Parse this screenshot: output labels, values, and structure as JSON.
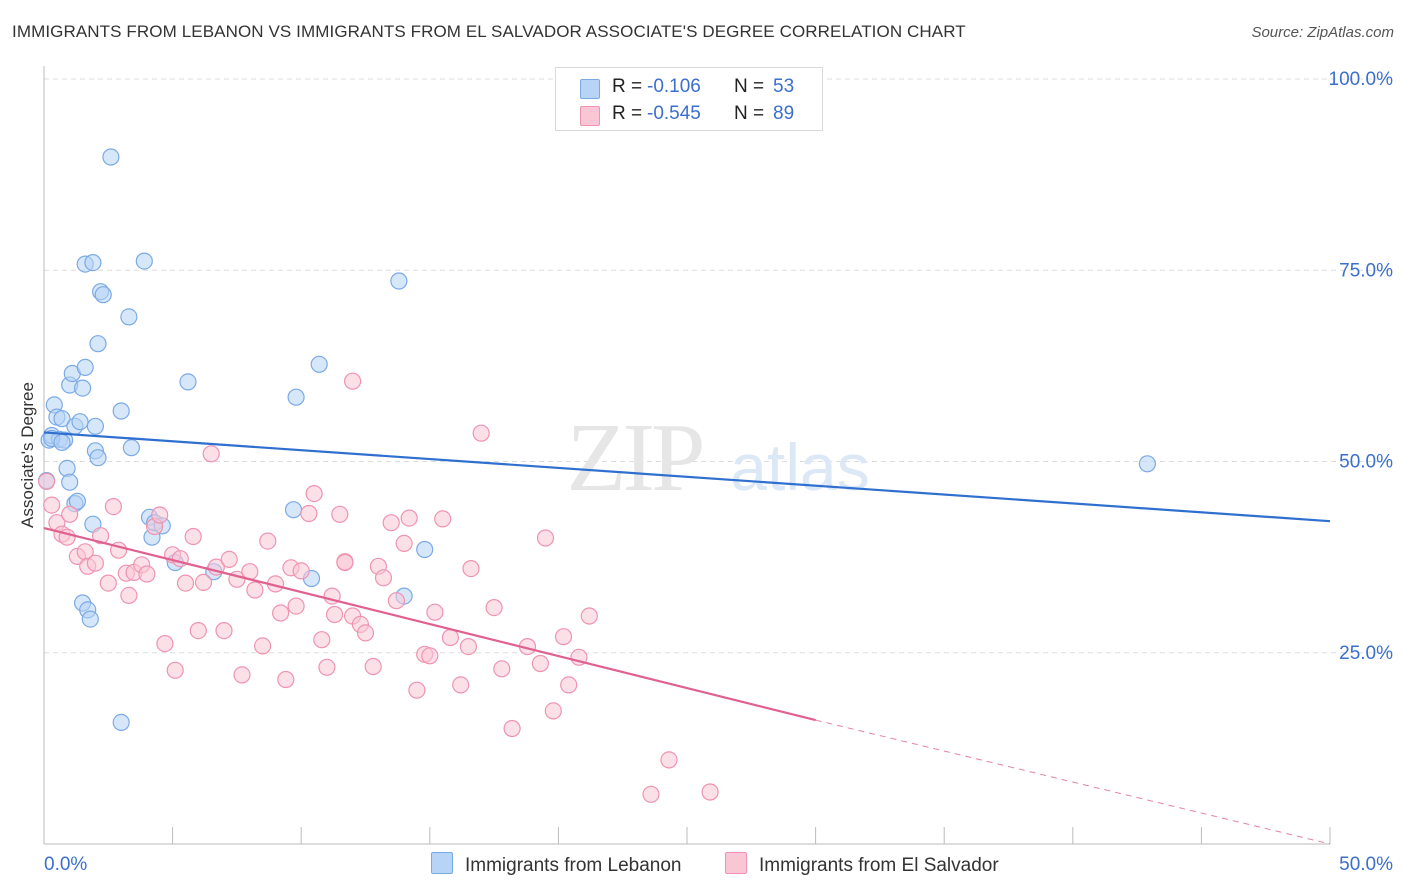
{
  "title": "IMMIGRANTS FROM LEBANON VS IMMIGRANTS FROM EL SALVADOR ASSOCIATE'S DEGREE CORRELATION CHART",
  "source": "Source: ZipAtlas.com",
  "watermark": {
    "zip": "ZIP",
    "atlas": "atlas"
  },
  "legend": [
    {
      "r_label": "R =",
      "r_value": "-0.106",
      "n_label": "N =",
      "n_value": "53"
    },
    {
      "r_label": "R =",
      "r_value": "-0.545",
      "n_label": "N =",
      "n_value": "89"
    }
  ],
  "colors": {
    "lebanon_fill": "#b7d3f5",
    "lebanon_stroke": "#7aaae6",
    "lebanon_line": "#2f6fcf",
    "salvador_fill": "#f9c6d6",
    "salvador_stroke": "#ef93b2",
    "salvador_line": "#e0618f",
    "axis_text": "#3a6fce",
    "grid": "#dddddd"
  },
  "chart_data": {
    "type": "scatter",
    "title": "IMMIGRANTS FROM LEBANON VS IMMIGRANTS FROM EL SALVADOR ASSOCIATE'S DEGREE CORRELATION CHART",
    "xlabel": "",
    "ylabel": "Associate's Degree",
    "xlim": [
      0,
      50
    ],
    "ylim": [
      0,
      102
    ],
    "x_tick_labels": {
      "left": "0.0%",
      "right": "50.0%"
    },
    "y_ticks": [
      {
        "value": 25,
        "label": "25.0%"
      },
      {
        "value": 50,
        "label": "50.0%"
      },
      {
        "value": 75,
        "label": "75.0%"
      },
      {
        "value": 100,
        "label": "100.0%"
      }
    ],
    "grid": true,
    "legend_position": "top-center",
    "series": [
      {
        "name": "Immigrants from Lebanon",
        "r": -0.106,
        "n": 53,
        "trend": {
          "x0": 0,
          "y0": 53.8,
          "x1": 50,
          "y1": 42.2
        },
        "points": [
          [
            0.1,
            47.5
          ],
          [
            0.2,
            52.8
          ],
          [
            0.3,
            53.4
          ],
          [
            0.4,
            57.4
          ],
          [
            0.5,
            55.8
          ],
          [
            0.6,
            52.9
          ],
          [
            0.7,
            55.6
          ],
          [
            0.8,
            52.8
          ],
          [
            0.9,
            49.1
          ],
          [
            1.0,
            60.0
          ],
          [
            1.0,
            47.3
          ],
          [
            1.1,
            61.5
          ],
          [
            1.2,
            54.6
          ],
          [
            1.2,
            44.5
          ],
          [
            1.3,
            44.8
          ],
          [
            1.4,
            55.2
          ],
          [
            1.5,
            59.6
          ],
          [
            1.5,
            31.5
          ],
          [
            1.6,
            62.3
          ],
          [
            1.6,
            75.8
          ],
          [
            1.7,
            30.6
          ],
          [
            1.8,
            29.4
          ],
          [
            1.9,
            76.0
          ],
          [
            2.0,
            51.4
          ],
          [
            2.0,
            54.6
          ],
          [
            2.1,
            50.5
          ],
          [
            2.1,
            65.4
          ],
          [
            2.2,
            72.2
          ],
          [
            2.3,
            71.8
          ],
          [
            2.6,
            89.8
          ],
          [
            3.0,
            56.6
          ],
          [
            3.0,
            15.9
          ],
          [
            3.3,
            68.9
          ],
          [
            3.4,
            51.8
          ],
          [
            3.9,
            76.2
          ],
          [
            4.1,
            42.7
          ],
          [
            4.2,
            40.1
          ],
          [
            4.3,
            42.0
          ],
          [
            4.6,
            41.6
          ],
          [
            5.1,
            36.8
          ],
          [
            5.6,
            60.4
          ],
          [
            6.6,
            35.6
          ],
          [
            9.7,
            43.7
          ],
          [
            9.8,
            58.4
          ],
          [
            10.4,
            34.7
          ],
          [
            10.7,
            62.7
          ],
          [
            13.8,
            73.6
          ],
          [
            14.8,
            38.5
          ],
          [
            14.0,
            32.4
          ],
          [
            42.9,
            49.7
          ],
          [
            0.3,
            53.0
          ],
          [
            0.7,
            52.5
          ],
          [
            1.9,
            41.8
          ]
        ]
      },
      {
        "name": "Immigrants from El Salvador",
        "r": -0.545,
        "n": 89,
        "trend": {
          "x0": 0,
          "y0": 41.3,
          "x1": 30,
          "y1": 16.2,
          "x_dash_end": 50,
          "y_dash_end": 0
        },
        "points": [
          [
            0.1,
            47.4
          ],
          [
            0.3,
            44.3
          ],
          [
            0.5,
            42.0
          ],
          [
            0.7,
            40.5
          ],
          [
            0.9,
            40.1
          ],
          [
            1.0,
            43.1
          ],
          [
            1.3,
            37.6
          ],
          [
            1.6,
            38.2
          ],
          [
            1.7,
            36.3
          ],
          [
            2.0,
            36.7
          ],
          [
            2.2,
            40.3
          ],
          [
            2.5,
            34.1
          ],
          [
            2.7,
            44.1
          ],
          [
            2.9,
            38.4
          ],
          [
            3.2,
            35.4
          ],
          [
            3.3,
            32.5
          ],
          [
            3.5,
            35.5
          ],
          [
            3.8,
            36.5
          ],
          [
            4.0,
            35.3
          ],
          [
            4.3,
            41.5
          ],
          [
            4.5,
            43.0
          ],
          [
            4.7,
            26.2
          ],
          [
            5.0,
            37.8
          ],
          [
            5.1,
            22.7
          ],
          [
            5.3,
            37.3
          ],
          [
            5.5,
            34.1
          ],
          [
            5.8,
            40.2
          ],
          [
            6.0,
            27.9
          ],
          [
            6.2,
            34.2
          ],
          [
            6.5,
            51.0
          ],
          [
            6.7,
            36.2
          ],
          [
            7.0,
            27.9
          ],
          [
            7.2,
            37.2
          ],
          [
            7.5,
            34.6
          ],
          [
            7.7,
            22.1
          ],
          [
            8.0,
            35.6
          ],
          [
            8.2,
            33.2
          ],
          [
            8.5,
            25.9
          ],
          [
            8.7,
            39.6
          ],
          [
            9.0,
            34.0
          ],
          [
            9.2,
            30.2
          ],
          [
            9.4,
            21.5
          ],
          [
            9.6,
            36.1
          ],
          [
            9.8,
            31.1
          ],
          [
            10.0,
            35.7
          ],
          [
            10.3,
            43.2
          ],
          [
            10.5,
            45.8
          ],
          [
            10.8,
            26.7
          ],
          [
            11.0,
            23.1
          ],
          [
            11.2,
            32.4
          ],
          [
            11.5,
            43.1
          ],
          [
            11.7,
            36.9
          ],
          [
            12.0,
            60.5
          ],
          [
            12.0,
            29.8
          ],
          [
            12.3,
            28.7
          ],
          [
            12.5,
            27.6
          ],
          [
            12.8,
            23.2
          ],
          [
            13.0,
            36.3
          ],
          [
            13.2,
            34.8
          ],
          [
            13.5,
            42.0
          ],
          [
            13.7,
            31.8
          ],
          [
            14.0,
            39.3
          ],
          [
            14.2,
            42.6
          ],
          [
            14.5,
            20.1
          ],
          [
            14.8,
            24.8
          ],
          [
            15.0,
            24.6
          ],
          [
            15.2,
            30.3
          ],
          [
            15.5,
            42.5
          ],
          [
            15.8,
            27.0
          ],
          [
            16.2,
            20.8
          ],
          [
            16.5,
            25.8
          ],
          [
            16.6,
            36.0
          ],
          [
            17.0,
            53.7
          ],
          [
            17.5,
            30.9
          ],
          [
            17.8,
            22.9
          ],
          [
            18.2,
            15.1
          ],
          [
            18.8,
            25.8
          ],
          [
            19.3,
            23.6
          ],
          [
            19.5,
            40.0
          ],
          [
            19.8,
            17.4
          ],
          [
            20.2,
            27.1
          ],
          [
            20.4,
            20.8
          ],
          [
            20.8,
            24.4
          ],
          [
            21.2,
            29.8
          ],
          [
            24.3,
            11.0
          ],
          [
            23.6,
            6.5
          ],
          [
            25.9,
            6.8
          ],
          [
            11.7,
            36.8
          ],
          [
            11.3,
            30.0
          ]
        ]
      }
    ]
  },
  "bottom_legend": [
    {
      "label": "Immigrants from Lebanon"
    },
    {
      "label": "Immigrants from El Salvador"
    }
  ]
}
